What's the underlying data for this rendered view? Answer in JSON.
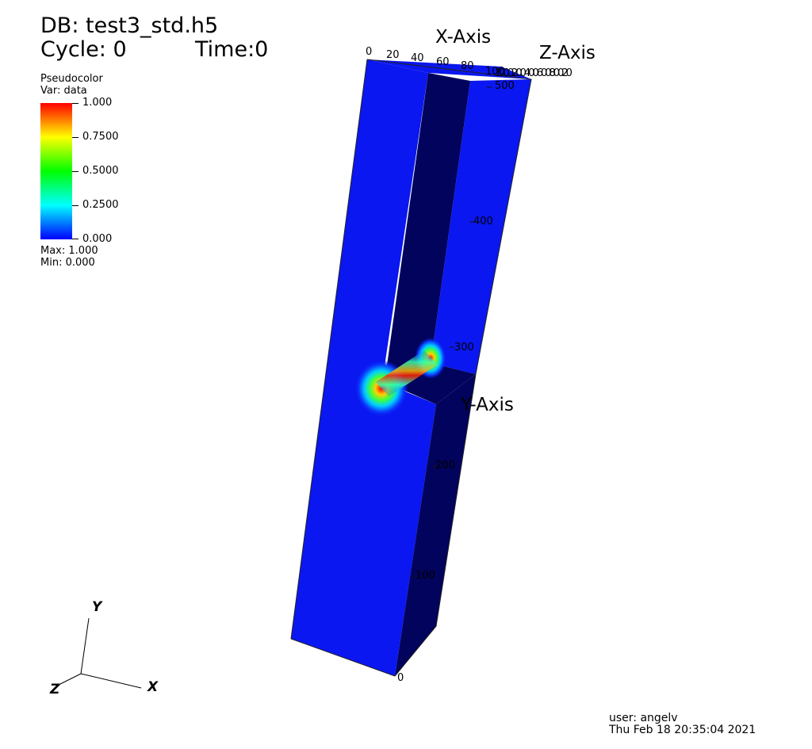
{
  "header": {
    "db_line": "DB: test3_std.h5",
    "cycle_label": "Cycle: 0",
    "time_label": "Time:0"
  },
  "legend": {
    "plot_type": "Pseudocolor",
    "var": "Var: data",
    "ticks": [
      "1.000",
      "0.7500",
      "0.5000",
      "0.2500",
      "0.000"
    ],
    "max": "Max:  1.000",
    "min": "Min:  0.000",
    "colors": [
      "#ff0000",
      "#ffff00",
      "#00ff00",
      "#00ffff",
      "#0000ff"
    ]
  },
  "axes": {
    "x_title": "X-Axis",
    "y_title": "Y-Axis",
    "z_title": "Z-Axis",
    "x_ticks": [
      "0",
      "20",
      "40",
      "60",
      "80",
      "100"
    ],
    "y_ticks": [
      "0",
      "100",
      "200",
      "300",
      "400",
      "500"
    ],
    "z_overlap_ticks": "100020040060080020",
    "triad": {
      "x": "X",
      "y": "Y",
      "z": "Z"
    }
  },
  "render": {
    "face_color": "#0a17f0",
    "dark_face_color": "#02035c"
  },
  "footer": {
    "user": "user: angelv",
    "date": "Thu Feb 18 20:35:04 2021"
  }
}
